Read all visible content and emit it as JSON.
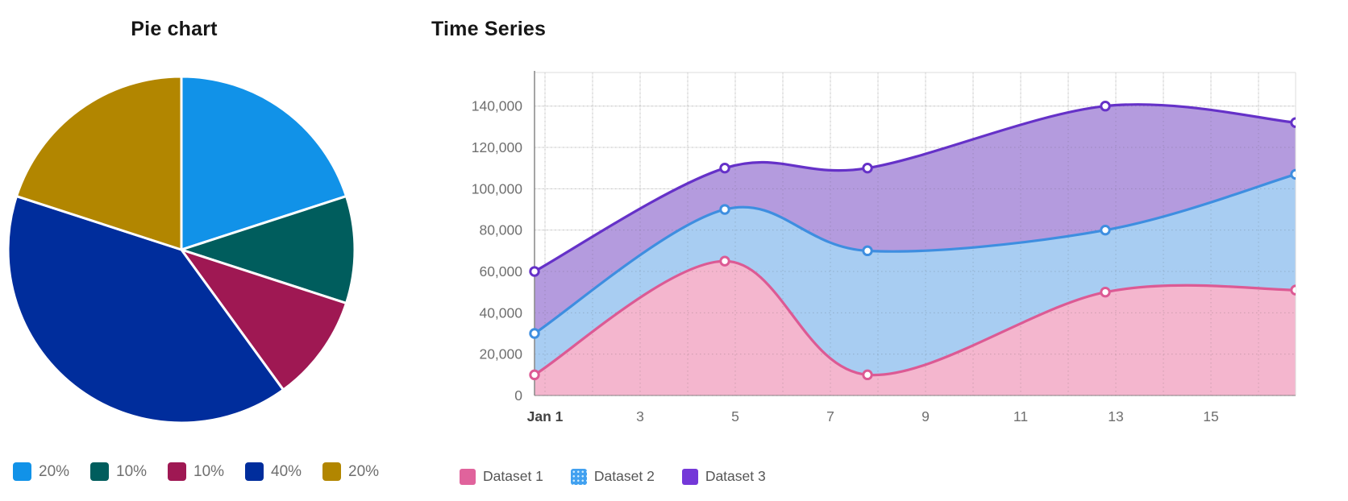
{
  "pie": {
    "title": "Pie chart",
    "legend_labels": [
      "20%",
      "10%",
      "10%",
      "40%",
      "20%"
    ]
  },
  "timeseries": {
    "title": "Time Series",
    "legend_labels": [
      "Dataset 1",
      "Dataset 2",
      "Dataset 3"
    ]
  },
  "chart_data": [
    {
      "type": "pie",
      "title": "Pie chart",
      "labels": [
        "20%",
        "10%",
        "10%",
        "40%",
        "20%"
      ],
      "values": [
        20,
        10,
        10,
        40,
        20
      ],
      "unit": "percent",
      "colors": [
        "#1192e8",
        "#005d5d",
        "#9f1853",
        "#002d9c",
        "#b28600"
      ],
      "start_angle": "top",
      "direction": "clockwise",
      "legend_position": "bottom"
    },
    {
      "type": "area",
      "title": "Time Series",
      "x_labels": [
        "Jan 1",
        "Jan 5",
        "Jan 8",
        "Jan 13",
        "Jan 17"
      ],
      "x_days": [
        1,
        5,
        8,
        13,
        17
      ],
      "series": [
        {
          "name": "Dataset 1",
          "values": [
            10000,
            65000,
            10000,
            50000,
            51000
          ],
          "line_color": "#dc5a94",
          "fill_color": "#f4b6ce",
          "swatch_color": "#e0639c",
          "swatch_pattern": "solid"
        },
        {
          "name": "Dataset 2",
          "values": [
            30000,
            90000,
            70000,
            80000,
            107000
          ],
          "line_color": "#3e8ee0",
          "fill_color": "#a8cdf2",
          "swatch_color": "#42a1f0",
          "swatch_pattern": "dotted"
        },
        {
          "name": "Dataset 3",
          "values": [
            60000,
            110000,
            110000,
            140000,
            132000
          ],
          "line_color": "#6531c8",
          "fill_color": "#b49bde",
          "swatch_color": "#7438d8",
          "swatch_pattern": "solid"
        }
      ],
      "x_tick_labels": [
        "Jan 1",
        "3",
        "5",
        "7",
        "9",
        "11",
        "13",
        "15"
      ],
      "x_tick_days": [
        1,
        3,
        5,
        7,
        9,
        11,
        13,
        15
      ],
      "xlim_days": [
        1,
        17
      ],
      "yticks": [
        0,
        20000,
        40000,
        60000,
        80000,
        100000,
        120000,
        140000
      ],
      "ytick_labels": [
        "0",
        "20,000",
        "40,000",
        "60,000",
        "80,000",
        "100,000",
        "120,000",
        "140,000"
      ],
      "ylim": [
        0,
        156000
      ],
      "grid": true,
      "curve": "smooth",
      "markers": "white-filled-circles",
      "legend_position": "bottom"
    }
  ],
  "ui_colors": {
    "grid": "#e4e4e4",
    "grid_dots_on_fill": "rgba(70,70,70,0.22)",
    "axis": "#8d8d8d",
    "plot_border": "#dcdcdc",
    "tick_text": "#6f6f6f",
    "first_tick_text": "#424242",
    "title_text": "#161616",
    "legend_text": "#565656"
  }
}
